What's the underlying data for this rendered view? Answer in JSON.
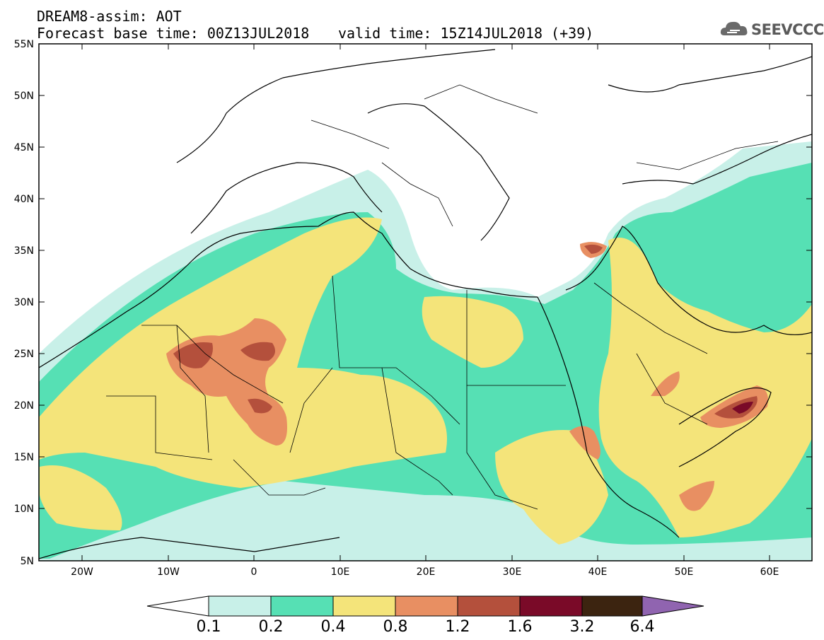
{
  "header": {
    "line1": "DREAM8-assim: AOT",
    "line2": "Forecast base time: 00Z13JUL2018",
    "line3": "valid time: 15Z14JUL2018 (+39)"
  },
  "logo": {
    "text": "SEEVCCC"
  },
  "map": {
    "lat_labels": [
      "55N",
      "50N",
      "45N",
      "40N",
      "35N",
      "30N",
      "25N",
      "20N",
      "15N",
      "10N",
      "5N"
    ],
    "lon_labels": [
      "20W",
      "10W",
      "0",
      "10E",
      "20E",
      "30E",
      "40E",
      "50E",
      "60E"
    ]
  },
  "colorbar": {
    "colors": [
      "#c8f0e8",
      "#56e0b4",
      "#f4e47a",
      "#e88f62",
      "#b4503c",
      "#7a0a28",
      "#3c2410",
      "#9064b0"
    ],
    "labels": [
      "0.1",
      "0.2",
      "0.4",
      "0.8",
      "1.2",
      "1.6",
      "3.2",
      "6.4"
    ]
  }
}
